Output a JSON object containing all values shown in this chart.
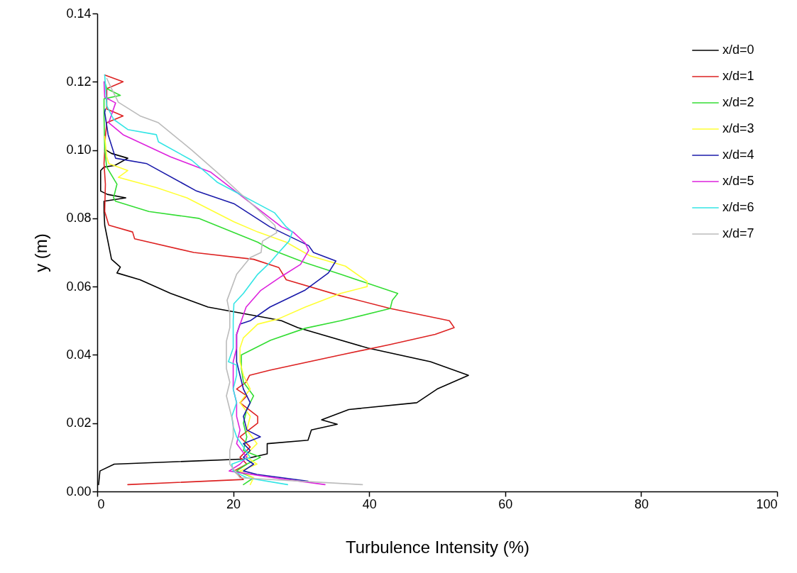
{
  "chart_data": {
    "type": "line",
    "xlabel": "Turbulence Intensity (%)",
    "ylabel": "y (m)",
    "xlim": [
      0,
      100
    ],
    "xticks": [
      0,
      20,
      40,
      60,
      80,
      100
    ],
    "ylim": [
      0,
      0.14
    ],
    "yticks": [
      {
        "value": 0,
        "label": "0.00"
      },
      {
        "value": 0.02,
        "label": "0.02"
      },
      {
        "value": 0.04,
        "label": "0.04"
      },
      {
        "value": 0.06,
        "label": "0.06"
      },
      {
        "value": 0.08,
        "label": "0.08"
      },
      {
        "value": 0.1,
        "label": "0.10"
      },
      {
        "value": 0.12,
        "label": "0.12"
      },
      {
        "value": 0.14,
        "label": "0.14"
      }
    ],
    "legend": "top right",
    "grid": false,
    "series": [
      {
        "name": "x/d=0",
        "color": "#000000",
        "x": [
          0.2,
          0.4,
          2.5,
          21.7,
          25,
          25,
          31,
          31.5,
          35.3,
          33,
          37,
          47,
          50,
          54.6,
          49,
          39.8,
          29.5,
          27.1,
          25.4,
          16.3,
          10.8,
          6.3,
          2.9,
          3.4,
          2.1,
          1.7,
          1.1,
          1,
          1,
          4.2,
          1.5,
          0.5,
          0.5,
          1,
          2.6,
          4.5,
          2.1,
          1.3
        ],
        "values": [
          0.002,
          0.006,
          0.008,
          0.0095,
          0.011,
          0.014,
          0.015,
          0.018,
          0.0197,
          0.021,
          0.024,
          0.026,
          0.03,
          0.034,
          0.038,
          0.042,
          0.048,
          0.05,
          0.0507,
          0.054,
          0.058,
          0.062,
          0.064,
          0.0657,
          0.068,
          0.072,
          0.078,
          0.082,
          0.085,
          0.086,
          0.087,
          0.088,
          0.094,
          0.095,
          0.0955,
          0.0976,
          0.099,
          0.1
        ]
      },
      {
        "name": "x/d=1",
        "color": "#dd2222",
        "x": [
          4.5,
          21.5,
          20.1,
          22,
          21,
          22.5,
          21,
          23.6,
          23.6,
          21,
          22,
          20.5,
          21.9,
          22.4,
          25.4,
          35.8,
          43,
          49.7,
          52.5,
          51.8,
          43.1,
          35.8,
          27.8,
          26.7,
          23,
          14.2,
          5.5,
          5.2,
          1.7,
          1.1,
          1.2,
          1,
          1.2,
          1.4,
          3.8,
          1.4,
          1.4,
          3.8,
          1.1
        ],
        "values": [
          0.002,
          0.0035,
          0.006,
          0.008,
          0.01,
          0.013,
          0.016,
          0.02,
          0.022,
          0.026,
          0.028,
          0.03,
          0.032,
          0.034,
          0.0355,
          0.04,
          0.043,
          0.046,
          0.048,
          0.05,
          0.0536,
          0.0573,
          0.062,
          0.0656,
          0.068,
          0.07,
          0.074,
          0.076,
          0.078,
          0.082,
          0.09,
          0.096,
          0.104,
          0.108,
          0.11,
          0.112,
          0.118,
          0.12,
          0.122
        ]
      },
      {
        "name": "x/d=2",
        "color": "#33dd33",
        "x": [
          21.5,
          23,
          20.5,
          22,
          24,
          21.5,
          22,
          21.5,
          22,
          23,
          21.5,
          21.2,
          21.2,
          25.5,
          30.6,
          35.8,
          43.1,
          43.4,
          44.2,
          39.7,
          35.8,
          30.6,
          25.4,
          23.6,
          14.9,
          7.6,
          2.7,
          2.4,
          2.9,
          1.4,
          1.1,
          1,
          1,
          3.4,
          1.4,
          1.1
        ],
        "values": [
          0.002,
          0.004,
          0.006,
          0.008,
          0.01,
          0.012,
          0.016,
          0.02,
          0.024,
          0.028,
          0.032,
          0.036,
          0.04,
          0.0443,
          0.0478,
          0.05,
          0.0536,
          0.056,
          0.058,
          0.061,
          0.0636,
          0.067,
          0.071,
          0.073,
          0.08,
          0.082,
          0.085,
          0.086,
          0.09,
          0.095,
          0.1,
          0.11,
          0.115,
          0.116,
          0.118,
          0.12
        ]
      },
      {
        "name": "x/d=3",
        "color": "#ffff33",
        "x": [
          22.5,
          23,
          21,
          23.5,
          22,
          22.5,
          23.5,
          22,
          22.5,
          21,
          22.5,
          21.5,
          21,
          21,
          21.5,
          23.6,
          26.6,
          30.6,
          35.8,
          39.7,
          39.7,
          36.5,
          31.3,
          27.8,
          23.6,
          20.1,
          13.2,
          8.7,
          3.1,
          4.5,
          1.7,
          1.4,
          1.1
        ],
        "values": [
          0.002,
          0.004,
          0.006,
          0.008,
          0.01,
          0.012,
          0.014,
          0.018,
          0.022,
          0.026,
          0.03,
          0.034,
          0.038,
          0.042,
          0.045,
          0.049,
          0.0505,
          0.054,
          0.058,
          0.06,
          0.0615,
          0.066,
          0.069,
          0.073,
          0.076,
          0.079,
          0.086,
          0.089,
          0.092,
          0.094,
          0.096,
          0.098,
          0.104
        ]
      },
      {
        "name": "x/d=4",
        "color": "#1a1aaa",
        "x": [
          31,
          23.5,
          21.5,
          23,
          21.5,
          22.5,
          21.5,
          24,
          22,
          21.5,
          22.5,
          21.5,
          21,
          20.5,
          20.5,
          20.5,
          21,
          22.5,
          25.4,
          30.6,
          34,
          35.1,
          31.8,
          31.1,
          25.4,
          20.1,
          14.6,
          7.3,
          2.7,
          1.6,
          1.1,
          1.2
        ],
        "values": [
          0.003,
          0.005,
          0.006,
          0.008,
          0.01,
          0.012,
          0.014,
          0.016,
          0.018,
          0.022,
          0.026,
          0.03,
          0.034,
          0.038,
          0.042,
          0.046,
          0.049,
          0.05,
          0.054,
          0.059,
          0.064,
          0.0675,
          0.07,
          0.072,
          0.0775,
          0.0843,
          0.088,
          0.096,
          0.0976,
          0.1045,
          0.111,
          0.112
        ]
      },
      {
        "name": "x/d=5",
        "color": "#dd22dd",
        "x": [
          33.5,
          26,
          19.4,
          21,
          22,
          20.5,
          21,
          20.5,
          20.5,
          20,
          20,
          20,
          20.5,
          20.5,
          21.9,
          24,
          27.1,
          29.9,
          31.1,
          30.6,
          28.8,
          27.1,
          16.7,
          10.8,
          3.8,
          1.7,
          2.7,
          1.1,
          1
        ],
        "values": [
          0.002,
          0.004,
          0.006,
          0.008,
          0.01,
          0.014,
          0.018,
          0.022,
          0.026,
          0.03,
          0.034,
          0.038,
          0.042,
          0.046,
          0.054,
          0.0588,
          0.063,
          0.0665,
          0.0706,
          0.0727,
          0.076,
          0.0775,
          0.0935,
          0.098,
          0.1045,
          0.108,
          0.1138,
          0.1155,
          0.12
        ]
      },
      {
        "name": "x/d=6",
        "color": "#33e5e5",
        "x": [
          28,
          22,
          20,
          19.8,
          22.5,
          21.5,
          20.5,
          20,
          19.8,
          20.5,
          20,
          20.5,
          20.5,
          19.3,
          20,
          20,
          20,
          20.1,
          21.5,
          23.6,
          25.4,
          26.7,
          28.2,
          28.7,
          27.8,
          26.1,
          17.7,
          13.9,
          9,
          8.7,
          4.5,
          2.4,
          1.4,
          1.1
        ],
        "values": [
          0.002,
          0.004,
          0.006,
          0.008,
          0.01,
          0.013,
          0.016,
          0.019,
          0.022,
          0.026,
          0.03,
          0.034,
          0.037,
          0.038,
          0.042,
          0.046,
          0.05,
          0.055,
          0.058,
          0.0636,
          0.067,
          0.07,
          0.0733,
          0.076,
          0.0775,
          0.0816,
          0.0905,
          0.097,
          0.1024,
          0.1045,
          0.106,
          0.109,
          0.113,
          0.122
        ]
      },
      {
        "name": "x/d=7",
        "color": "#bbbbbb",
        "x": [
          39,
          21,
          19.5,
          19.5,
          20,
          20,
          19.5,
          19,
          19.5,
          19,
          19,
          19,
          19.5,
          19.5,
          19.1,
          20.5,
          22.5,
          24.1,
          24.3,
          26.4,
          26.1,
          18.8,
          13.9,
          9,
          6.3,
          3.1,
          2.1,
          1.4
        ],
        "values": [
          0.002,
          0.004,
          0.008,
          0.012,
          0.016,
          0.02,
          0.024,
          0.028,
          0.032,
          0.036,
          0.04,
          0.044,
          0.048,
          0.052,
          0.056,
          0.0636,
          0.0685,
          0.07,
          0.0733,
          0.0758,
          0.078,
          0.0914,
          0.1,
          0.108,
          0.11,
          0.114,
          0.118,
          0.121
        ]
      }
    ]
  }
}
